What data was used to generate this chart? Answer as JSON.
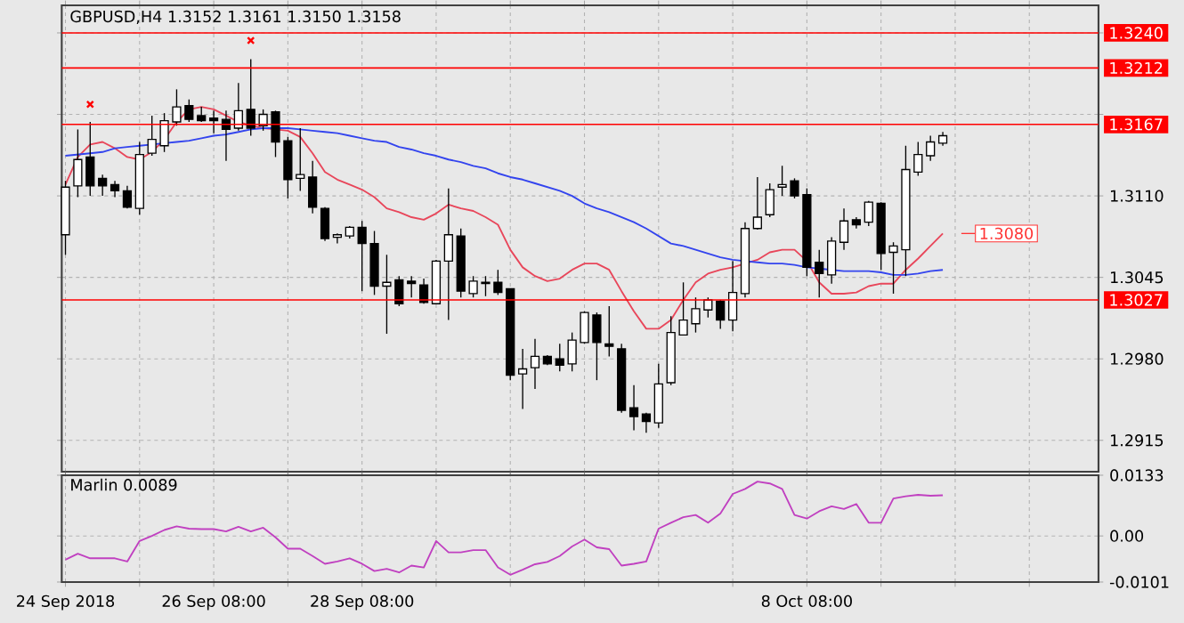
{
  "chart_data": [
    {
      "type": "candlestick",
      "title": "GBPUSD,H4  1.3152 1.3161 1.3150 1.3158",
      "categories": [
        null,
        null,
        null,
        null,
        null,
        null,
        null,
        null,
        null,
        null,
        null,
        null,
        null,
        null,
        null,
        null,
        null,
        null,
        null,
        null,
        null,
        null,
        null,
        null,
        null,
        null,
        null,
        null,
        null,
        null,
        null,
        null,
        null,
        null,
        null,
        null,
        null,
        null,
        null,
        null,
        null,
        null,
        null,
        null,
        null,
        null,
        null,
        null,
        null,
        null,
        null,
        null,
        null,
        null,
        null,
        null,
        null,
        null,
        null,
        null,
        null,
        null,
        null,
        null,
        null,
        null,
        null,
        null,
        null,
        null,
        null,
        null
      ],
      "ohlc": [
        [
          1.3079,
          1.3122,
          1.3063,
          1.3117
        ],
        [
          1.3118,
          1.3163,
          1.3109,
          1.3139
        ],
        [
          1.3141,
          1.3169,
          1.311,
          1.3118
        ],
        [
          1.3124,
          1.3127,
          1.311,
          1.3118
        ],
        [
          1.3119,
          1.3122,
          1.3109,
          1.3114
        ],
        [
          1.3114,
          1.3118,
          1.31,
          1.3101
        ],
        [
          1.31,
          1.3153,
          1.3095,
          1.3143
        ],
        [
          1.3144,
          1.3174,
          1.3142,
          1.3155
        ],
        [
          1.315,
          1.3176,
          1.3145,
          1.317
        ],
        [
          1.3169,
          1.3195,
          1.3166,
          1.3181
        ],
        [
          1.3182,
          1.3187,
          1.3169,
          1.3171
        ],
        [
          1.3174,
          1.3181,
          1.3169,
          1.317
        ],
        [
          1.3172,
          1.3178,
          1.316,
          1.317
        ],
        [
          1.3171,
          1.3178,
          1.3138,
          1.3163
        ],
        [
          1.3164,
          1.32,
          1.3162,
          1.3178
        ],
        [
          1.3179,
          1.3219,
          1.3158,
          1.3164
        ],
        [
          1.3166,
          1.3179,
          1.3162,
          1.3175
        ],
        [
          1.3177,
          1.3178,
          1.3141,
          1.3153
        ],
        [
          1.3154,
          1.3157,
          1.3108,
          1.3123
        ],
        [
          1.3124,
          1.3164,
          1.3114,
          1.3127
        ],
        [
          1.3125,
          1.3138,
          1.3096,
          1.3101
        ],
        [
          1.31,
          1.3101,
          1.3074,
          1.3076
        ],
        [
          1.3077,
          1.308,
          1.3072,
          1.3079
        ],
        [
          1.3078,
          1.3086,
          1.3076,
          1.3085
        ],
        [
          1.3085,
          1.309,
          1.3034,
          1.3072
        ],
        [
          1.3072,
          1.3082,
          1.3031,
          1.3038
        ],
        [
          1.3038,
          1.3063,
          1.3,
          1.3041
        ],
        [
          1.3043,
          1.3046,
          1.3022,
          1.3024
        ],
        [
          1.3042,
          1.3046,
          1.3029,
          1.304
        ],
        [
          1.3039,
          1.3044,
          1.3024,
          1.3025
        ],
        [
          1.3024,
          1.3059,
          1.3024,
          1.3058
        ],
        [
          1.3058,
          1.3116,
          1.3011,
          1.3079
        ],
        [
          1.3078,
          1.3084,
          1.3029,
          1.3034
        ],
        [
          1.3032,
          1.3046,
          1.3029,
          1.3042
        ],
        [
          1.304,
          1.3046,
          1.303,
          1.3041
        ],
        [
          1.3041,
          1.3051,
          1.3031,
          1.3033
        ],
        [
          1.3036,
          1.3036,
          1.2963,
          1.2967
        ],
        [
          1.2968,
          1.2988,
          1.294,
          1.2972
        ],
        [
          1.2973,
          1.2996,
          1.2956,
          1.2982
        ],
        [
          1.2982,
          1.2983,
          1.2975,
          1.2976
        ],
        [
          1.298,
          1.2992,
          1.297,
          1.2975
        ],
        [
          1.2976,
          1.3001,
          1.297,
          1.2995
        ],
        [
          1.2993,
          1.3018,
          1.2992,
          1.3017
        ],
        [
          1.3015,
          1.3017,
          1.2963,
          1.2993
        ],
        [
          1.2992,
          1.3022,
          1.2982,
          1.299
        ],
        [
          1.2988,
          1.2992,
          1.2937,
          1.2939
        ],
        [
          1.2941,
          1.2959,
          1.2923,
          1.2934
        ],
        [
          1.2936,
          1.2937,
          1.2921,
          1.293
        ],
        [
          1.2929,
          1.2976,
          1.2925,
          1.296
        ],
        [
          1.2961,
          1.3014,
          1.2959,
          1.3001
        ],
        [
          1.2999,
          1.3041,
          1.2999,
          1.3011
        ],
        [
          1.3008,
          1.3029,
          1.3001,
          1.302
        ],
        [
          1.3019,
          1.3029,
          1.3013,
          1.3027
        ],
        [
          1.3026,
          1.3027,
          1.3004,
          1.3011
        ],
        [
          1.3011,
          1.3058,
          1.3002,
          1.3033
        ],
        [
          1.3032,
          1.3089,
          1.3029,
          1.3084
        ],
        [
          1.3084,
          1.3125,
          1.3083,
          1.3093
        ],
        [
          1.3095,
          1.312,
          1.3093,
          1.3115
        ],
        [
          1.3117,
          1.3134,
          1.311,
          1.3119
        ],
        [
          1.3122,
          1.3124,
          1.3108,
          1.311
        ],
        [
          1.3111,
          1.3116,
          1.3046,
          1.3053
        ],
        [
          1.3057,
          1.3067,
          1.3029,
          1.3048
        ],
        [
          1.3047,
          1.3077,
          1.304,
          1.3074
        ],
        [
          1.3073,
          1.31,
          1.3067,
          1.309
        ],
        [
          1.3091,
          1.3093,
          1.3084,
          1.3087
        ],
        [
          1.3089,
          1.3106,
          1.3086,
          1.3105
        ],
        [
          1.3104,
          1.3105,
          1.3051,
          1.3064
        ],
        [
          1.3065,
          1.3073,
          1.3032,
          1.307
        ],
        [
          1.3067,
          1.315,
          1.3046,
          1.3131
        ],
        [
          1.3129,
          1.3153,
          1.3126,
          1.3143
        ],
        [
          1.3142,
          1.3158,
          1.3138,
          1.3153
        ],
        [
          1.3152,
          1.3161,
          1.315,
          1.3158
        ]
      ],
      "series": [
        {
          "type": "line",
          "color": "#e8465a",
          "values": [
            1.3119,
            1.3141,
            1.3151,
            1.3153,
            1.3148,
            1.3141,
            1.3139,
            1.3145,
            1.3155,
            1.3169,
            1.3179,
            1.3181,
            1.3179,
            1.3174,
            1.3169,
            1.3166,
            1.3164,
            1.3163,
            1.3162,
            1.3157,
            1.3144,
            1.3129,
            1.3123,
            1.3119,
            1.3115,
            1.3109,
            1.31,
            1.3097,
            1.3093,
            1.3091,
            1.3096,
            1.3103,
            1.31,
            1.3098,
            1.3093,
            1.3087,
            1.3067,
            1.3053,
            1.3046,
            1.3042,
            1.3044,
            1.3051,
            1.3056,
            1.3056,
            1.3051,
            1.3034,
            1.3018,
            1.3004,
            1.3004,
            1.3011,
            1.3027,
            1.3041,
            1.3048,
            1.3051,
            1.3053,
            1.3056,
            1.3059,
            1.3065,
            1.3067,
            1.3067,
            1.3058,
            1.3041,
            1.3032,
            1.3032,
            1.3033,
            1.3038,
            1.304,
            1.304,
            1.3051,
            1.306,
            1.307,
            1.308
          ]
        },
        {
          "type": "line",
          "color": "#3344ee",
          "values": [
            1.3142,
            1.3143,
            1.3144,
            1.3145,
            1.3148,
            1.3149,
            1.315,
            1.3151,
            1.3152,
            1.3153,
            1.3154,
            1.3156,
            1.3158,
            1.3159,
            1.3161,
            1.3163,
            1.3164,
            1.3164,
            1.3164,
            1.3163,
            1.3162,
            1.3161,
            1.316,
            1.3158,
            1.3156,
            1.3154,
            1.3153,
            1.3149,
            1.3147,
            1.3144,
            1.3142,
            1.3139,
            1.3137,
            1.3134,
            1.3132,
            1.3128,
            1.3125,
            1.3123,
            1.312,
            1.3117,
            1.3114,
            1.311,
            1.3104,
            1.31,
            1.3097,
            1.3093,
            1.3089,
            1.3084,
            1.3078,
            1.3072,
            1.307,
            1.3067,
            1.3064,
            1.3061,
            1.3059,
            1.3058,
            1.3057,
            1.3056,
            1.3056,
            1.3055,
            1.3053,
            1.3052,
            1.3051,
            1.305,
            1.305,
            1.305,
            1.3049,
            1.3047,
            1.3047,
            1.3048,
            1.305,
            1.3051
          ]
        },
        {
          "type": "scatter",
          "marker": "cross",
          "color": "#ff0000",
          "values": [
            null,
            null,
            1.3183,
            null,
            null,
            null,
            null,
            null,
            null,
            null,
            null,
            null,
            null,
            null,
            null,
            1.3234,
            null,
            null,
            null,
            null,
            null,
            null,
            null,
            null,
            null,
            null,
            null,
            null,
            null,
            null,
            null,
            null,
            null,
            null,
            null,
            null,
            null,
            null,
            null,
            null,
            null,
            null,
            null,
            null,
            null,
            null,
            null,
            null,
            null,
            null,
            null,
            null,
            null,
            null,
            null,
            null,
            null,
            null,
            null,
            null,
            null,
            null,
            null,
            null,
            null,
            null,
            null,
            null,
            null,
            null,
            null,
            null
          ]
        }
      ],
      "ylim": [
        1.289,
        1.3262
      ],
      "yticks": [
        1.2915,
        {
          "value": 1.298,
          "label": "1.2980"
        },
        1.3045,
        {
          "value": 1.311,
          "label": "1.3110"
        },
        {
          "value": 1.3175,
          "label": null
        },
        {
          "value": 1.324,
          "label": null
        }
      ],
      "ref_lines": [
        {
          "axis": "y",
          "value": 1.324,
          "label": "1.3240",
          "color": "#ff0000"
        },
        {
          "axis": "y",
          "value": 1.3212,
          "label": "1.3212",
          "color": "#ff0000"
        },
        {
          "axis": "y",
          "value": 1.3167,
          "label": "1.3167",
          "color": "#ff0000"
        },
        {
          "axis": "y",
          "value": 1.3027,
          "label": "1.3027",
          "color": "#ff0000"
        }
      ],
      "annotations": [
        "1.3080"
      ],
      "grid": true,
      "tick_labels": "y"
    },
    {
      "type": "line",
      "title": "Marlin 0.0089",
      "categories": [
        "24 Sep 2018",
        null,
        null,
        null,
        null,
        null,
        null,
        null,
        null,
        null,
        null,
        null,
        "26 Sep 08:00",
        null,
        null,
        null,
        null,
        null,
        null,
        null,
        null,
        null,
        null,
        null,
        "28 Sep 08:00",
        null,
        null,
        null,
        null,
        null,
        null,
        null,
        null,
        null,
        null,
        null,
        null,
        null,
        null,
        null,
        null,
        null,
        null,
        null,
        null,
        null,
        null,
        null,
        null,
        null,
        null,
        null,
        null,
        null,
        null,
        null,
        null,
        null,
        null,
        null,
        "8 Oct 08:00",
        null,
        null,
        null,
        null,
        null,
        null,
        null,
        null,
        null,
        null,
        null
      ],
      "series": [
        {
          "color": "#c040c0",
          "values": [
            -0.0052,
            -0.0039,
            -0.0049,
            -0.0049,
            -0.0049,
            -0.0056,
            -0.0011,
            0.0,
            0.0013,
            0.0021,
            0.0016,
            0.0015,
            0.0015,
            0.001,
            0.002,
            0.001,
            0.0018,
            -0.0003,
            -0.0028,
            -0.0028,
            -0.0044,
            -0.0061,
            -0.0056,
            -0.0049,
            -0.0061,
            -0.0077,
            -0.0072,
            -0.008,
            -0.0065,
            -0.0069,
            -0.0011,
            -0.0036,
            -0.0036,
            -0.0031,
            -0.0031,
            -0.0069,
            -0.0085,
            -0.0074,
            -0.0062,
            -0.0057,
            -0.0044,
            -0.0023,
            -0.0008,
            -0.0025,
            -0.0029,
            -0.0065,
            -0.0061,
            -0.0056,
            0.0016,
            0.0029,
            0.0041,
            0.0046,
            0.0029,
            0.0049,
            0.0092,
            0.0103,
            0.0119,
            0.0115,
            0.0103,
            0.0046,
            0.0038,
            0.0054,
            0.0065,
            0.0059,
            0.007,
            0.0029,
            0.0029,
            0.0082,
            0.0087,
            0.009,
            0.0088,
            0.0089
          ]
        }
      ],
      "ylim": [
        -0.0101,
        0.0133
      ],
      "yticks": [
        0.0133,
        {
          "value": 0,
          "label": "0.00"
        },
        -0.0101
      ],
      "grid": true
    }
  ]
}
